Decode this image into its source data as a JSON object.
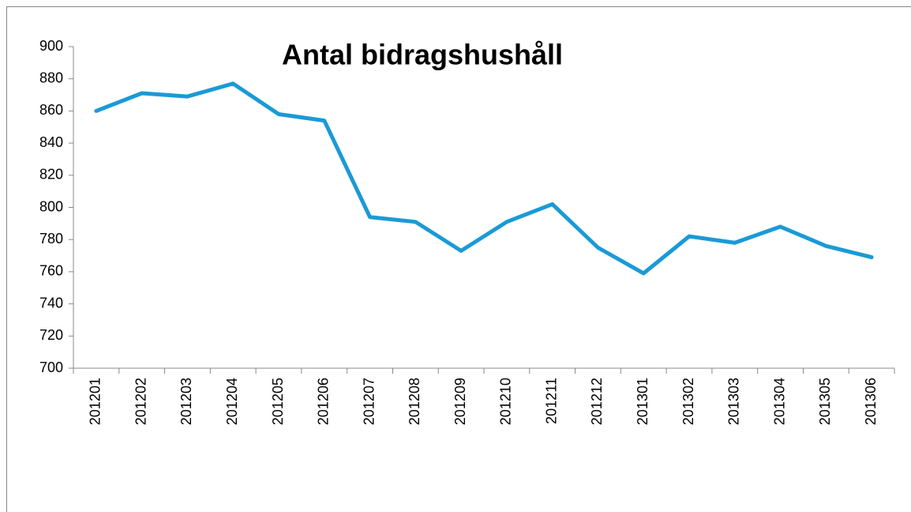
{
  "chart_data": {
    "type": "line",
    "title": "Antal bidragshushåll",
    "categories": [
      "201201",
      "201202",
      "201203",
      "201204",
      "201205",
      "201206",
      "201207",
      "201208",
      "201209",
      "201210",
      "201211",
      "201212",
      "201301",
      "201302",
      "201303",
      "201304",
      "201305",
      "201306"
    ],
    "series": [
      {
        "name": "Antal bidragshushåll",
        "color": "#1a9ad6",
        "values": [
          860,
          871,
          869,
          877,
          858,
          854,
          794,
          791,
          773,
          791,
          802,
          775,
          759,
          782,
          778,
          788,
          776,
          769
        ]
      }
    ],
    "ylim": [
      700,
      900
    ],
    "yticks": [
      700,
      720,
      740,
      760,
      780,
      800,
      820,
      840,
      860,
      880,
      900
    ],
    "grid": false,
    "legend": false
  }
}
